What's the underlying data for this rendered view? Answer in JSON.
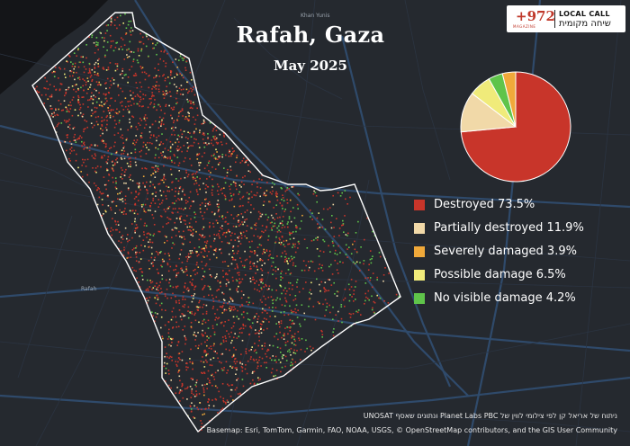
{
  "map": {
    "title": "Rafah, Gaza",
    "subtitle": "May 2025",
    "place_labels": [
      "Khan Yunis",
      "Rafah"
    ]
  },
  "logo": {
    "number": "+972",
    "magazine": "MAGAZINE",
    "local_call": "LOCAL CALL",
    "hebrew": "שיחה מקומית"
  },
  "legend": [
    {
      "label": "Destroyed 73.5%",
      "color": "#c8352a"
    },
    {
      "label": "Partially destroyed 11.9%",
      "color": "#f1d9a8"
    },
    {
      "label": "Severely damaged 3.9%",
      "color": "#f0a93a"
    },
    {
      "label": "Possible damage 6.5%",
      "color": "#f0eb7a"
    },
    {
      "label": "No visible damage 4.2%",
      "color": "#5fc44a"
    }
  ],
  "chart_data": {
    "type": "pie",
    "slices": [
      {
        "name": "Destroyed",
        "value": 73.5,
        "color": "#c8352a"
      },
      {
        "name": "Partially destroyed",
        "value": 11.9,
        "color": "#f1d9a8"
      },
      {
        "name": "Possible damage",
        "value": 6.5,
        "color": "#f0eb7a"
      },
      {
        "name": "No visible damage",
        "value": 4.2,
        "color": "#5fc44a"
      },
      {
        "name": "Severely damaged",
        "value": 3.9,
        "color": "#f0a93a"
      }
    ]
  },
  "credits": {
    "line1": "ניתוח של אריאל קן לפי צילומי לווין של Planet Labs PBC ונתונים שאסף UNOSAT",
    "line2": "Basemap: Esri, TomTom, Garmin, FAO, NOAA, USGS, © OpenStreetMap contributors, and the GIS User Community"
  }
}
